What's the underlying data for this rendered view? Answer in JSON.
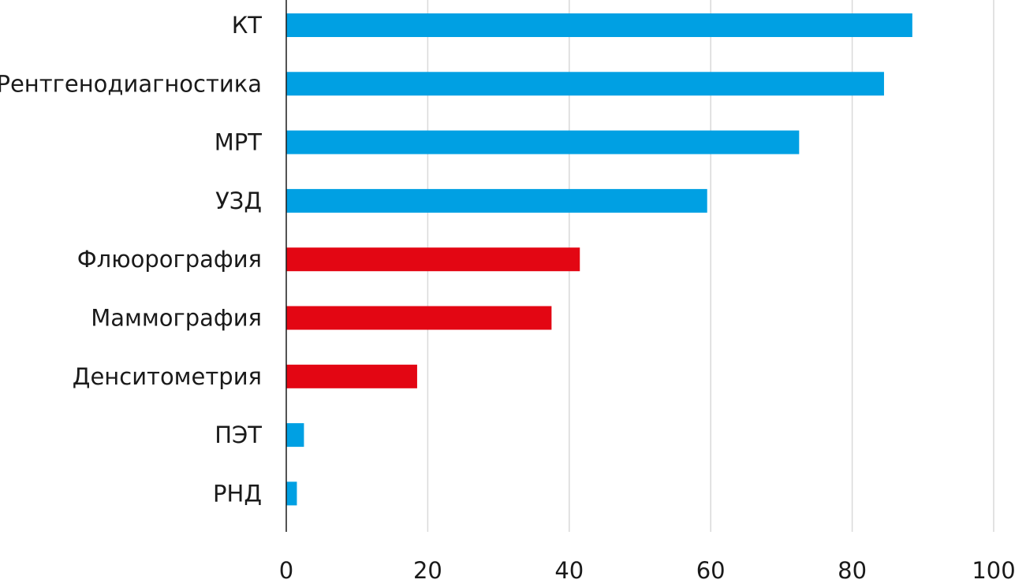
{
  "chart_data": {
    "type": "bar",
    "orientation": "horizontal",
    "title": "",
    "xlabel": "",
    "ylabel": "",
    "categories": [
      "КТ",
      "Рентгенодиагностика",
      "МРТ",
      "УЗД",
      "Флюорография",
      "Маммография",
      "Денситометрия",
      "ПЭТ",
      "РНД"
    ],
    "values": [
      88.5,
      84.5,
      72.5,
      59.5,
      41.5,
      37.5,
      18.5,
      2.5,
      1.5
    ],
    "bar_colors": [
      "#00a0e3",
      "#00a0e3",
      "#00a0e3",
      "#00a0e3",
      "#e30613",
      "#e30613",
      "#e30613",
      "#00a0e3",
      "#00a0e3"
    ],
    "xlim": [
      0,
      100
    ],
    "x_ticks": [
      0,
      20,
      40,
      60,
      80,
      100
    ],
    "grid": "vertical",
    "legend": "none"
  }
}
